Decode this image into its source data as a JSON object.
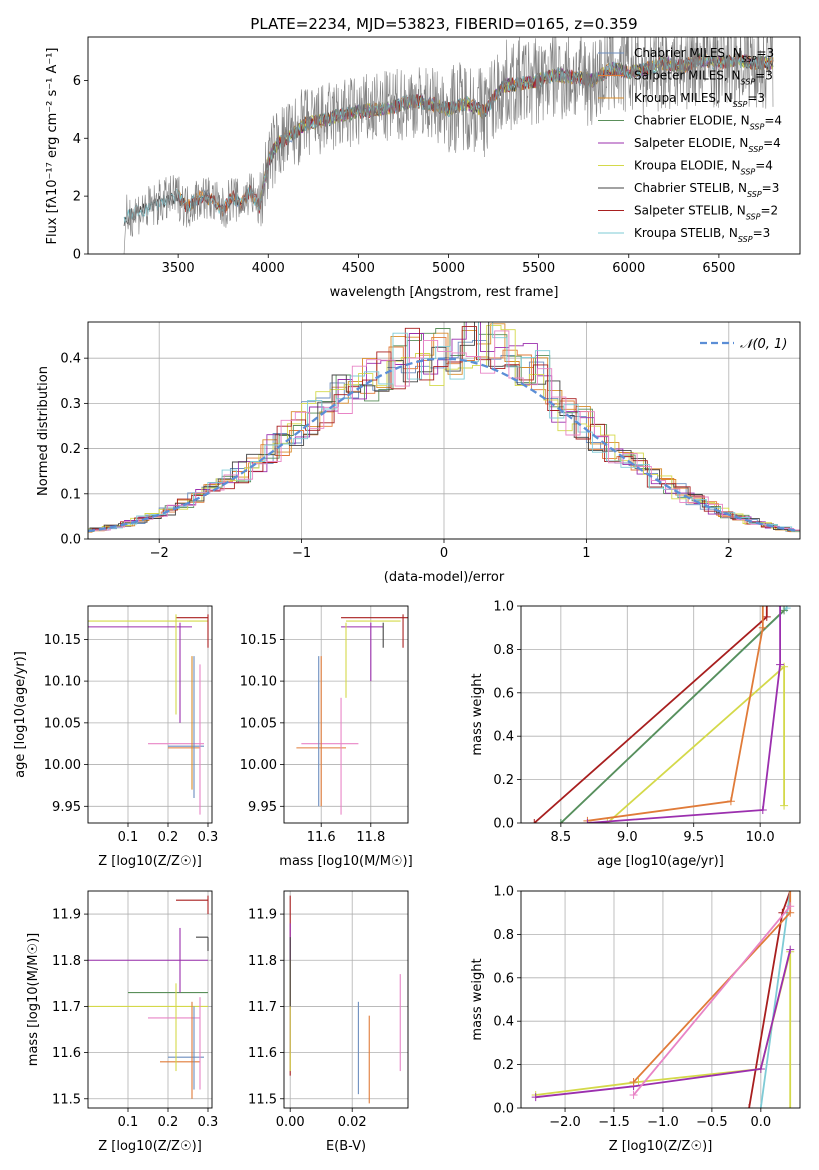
{
  "figure_title": "PLATE=2234, MJD=53823, FIBERID=0165, z=0.359",
  "colors": {
    "model_colors": [
      "#6c8ebf",
      "#e07b39",
      "#d98c2a",
      "#5a8f5a",
      "#9b2fae",
      "#d4d94a",
      "#444444",
      "#a81f1f",
      "#7ecbd6"
    ],
    "mass_ebv_colors": [
      "#6c8ebf",
      "#e07b39",
      "#e884c6"
    ],
    "normal_curve": "#5b8ed6",
    "spectrum_data": "#808080"
  },
  "chart_data": [
    {
      "id": "spectrum",
      "type": "line",
      "title": "PLATE=2234, MJD=53823, FIBERID=0165, z=0.359",
      "xlabel": "wavelength [Angstrom, rest frame]",
      "ylabel": "Flux [fλ10⁻¹⁷ erg cm⁻² s⁻¹ A⁻¹]",
      "xlim": [
        3000,
        6950
      ],
      "ylim": [
        0,
        7.5
      ],
      "xticks": [
        3500,
        4000,
        4500,
        5000,
        5500,
        6000,
        6500
      ],
      "yticks": [
        0,
        2,
        4,
        6
      ],
      "grid": false,
      "legend_position": "right",
      "legend": [
        "Chabrier MILES, N_SSP=3",
        "Salpeter MILES, N_SSP=3",
        "Kroupa MILES, N_SSP=3",
        "Chabrier ELODIE, N_SSP=4",
        "Salpeter ELODIE, N_SSP=4",
        "Kroupa ELODIE, N_SSP=4",
        "Chabrier STELIB, N_SSP=3",
        "Salpeter STELIB, N_SSP=2",
        "Kroupa STELIB, N_SSP=3"
      ],
      "continuum": {
        "x": [
          3200,
          3250,
          3300,
          3350,
          3400,
          3450,
          3500,
          3550,
          3600,
          3650,
          3700,
          3750,
          3800,
          3850,
          3900,
          3950,
          4000,
          4050,
          4100,
          4150,
          4200,
          4300,
          4400,
          4500,
          4600,
          4700,
          4800,
          4900,
          5000,
          5100,
          5200,
          5300,
          5400,
          5500,
          5600,
          5700,
          5800,
          5900,
          6000,
          6100,
          6200,
          6300,
          6400,
          6500,
          6600,
          6700,
          6800
        ],
        "y": [
          1.2,
          1.4,
          1.5,
          1.6,
          1.8,
          1.9,
          2.0,
          1.6,
          1.9,
          2.0,
          1.8,
          1.5,
          2.0,
          1.7,
          2.2,
          1.6,
          3.2,
          3.8,
          4.0,
          4.2,
          4.5,
          4.6,
          4.8,
          4.9,
          5.0,
          5.1,
          5.3,
          5.2,
          5.0,
          5.2,
          4.9,
          5.8,
          5.9,
          6.0,
          6.2,
          6.1,
          6.0,
          6.4,
          6.3,
          6.4,
          6.6,
          6.5,
          6.7,
          6.6,
          6.7,
          6.6,
          6.6
        ]
      }
    },
    {
      "id": "residuals",
      "type": "line",
      "xlabel": "(data-model)/error",
      "ylabel": "Normed distribution",
      "xlim": [
        -2.5,
        2.5
      ],
      "ylim": [
        0,
        0.48
      ],
      "xticks": [
        -2,
        -1,
        0,
        1,
        2
      ],
      "yticks": [
        0.0,
        0.1,
        0.2,
        0.3,
        0.4
      ],
      "grid": true,
      "legend_position": "top-right",
      "legend": [
        "𝒩(0, 1)"
      ],
      "normal_curve": {
        "mean": 0,
        "sigma": 1
      }
    },
    {
      "id": "age_vs_Z",
      "type": "scatter",
      "xlabel": "Z [log10(Z/Z☉)]",
      "ylabel": "age  [log10(age/yr)]",
      "xlim": [
        0.0,
        0.31
      ],
      "ylim": [
        9.93,
        10.19
      ],
      "xticks": [
        0.1,
        0.2,
        0.3
      ],
      "yticks": [
        9.95,
        10.0,
        10.05,
        10.1,
        10.15
      ],
      "grid": true
    },
    {
      "id": "age_vs_mass",
      "type": "scatter",
      "xlabel": "mass [log10(M/M☉)]",
      "ylabel": "",
      "xlim": [
        11.45,
        11.95
      ],
      "ylim": [
        9.93,
        10.19
      ],
      "xticks": [
        11.6,
        11.8
      ],
      "yticks": [
        9.95,
        10.0,
        10.05,
        10.1,
        10.15
      ],
      "grid": true
    },
    {
      "id": "cum_weight_age",
      "type": "line",
      "xlabel": "age  [log10(age/yr)]",
      "ylabel": "mass weight",
      "xlim": [
        8.2,
        10.3
      ],
      "ylim": [
        0.0,
        1.0
      ],
      "xticks": [
        8.5,
        9.0,
        9.5,
        10.0
      ],
      "yticks": [
        0.0,
        0.2,
        0.4,
        0.6,
        0.8,
        1.0
      ],
      "grid": true,
      "series": [
        {
          "x": [
            8.3,
            10.05,
            10.05
          ],
          "y": [
            0.0,
            0.95,
            1.0
          ],
          "color": "#a81f1f"
        },
        {
          "x": [
            8.5,
            10.2,
            10.2
          ],
          "y": [
            0.0,
            0.99,
            1.0
          ],
          "color": "#7ecbd6"
        },
        {
          "x": [
            8.5,
            10.18
          ],
          "y": [
            0.0,
            0.98
          ],
          "color": "#5a8f5a"
        },
        {
          "x": [
            8.85,
            10.18,
            10.18
          ],
          "y": [
            0.0,
            0.72,
            0.08
          ],
          "color": "#d4d94a"
        },
        {
          "x": [
            8.7,
            9.78,
            10.02,
            10.02
          ],
          "y": [
            0.01,
            0.1,
            0.9,
            1.0
          ],
          "color": "#e07b39"
        },
        {
          "x": [
            8.7,
            10.02,
            10.15,
            10.15
          ],
          "y": [
            0.0,
            0.06,
            0.73,
            1.0
          ],
          "color": "#9b2fae"
        }
      ]
    },
    {
      "id": "mass_vs_Z",
      "type": "scatter",
      "xlabel": "Z [log10(Z/Z☉)]",
      "ylabel": "mass [log10(M/M☉)]",
      "xlim": [
        0.0,
        0.31
      ],
      "ylim": [
        11.48,
        11.95
      ],
      "xticks": [
        0.1,
        0.2,
        0.3
      ],
      "yticks": [
        11.5,
        11.6,
        11.7,
        11.8,
        11.9
      ],
      "grid": true
    },
    {
      "id": "mass_vs_ebv",
      "type": "scatter",
      "xlabel": "E(B-V)",
      "ylabel": "",
      "xlim": [
        -0.002,
        0.038
      ],
      "ylim": [
        11.48,
        11.95
      ],
      "xticks": [
        0.0,
        0.02
      ],
      "yticks": [
        11.5,
        11.6,
        11.7,
        11.8,
        11.9
      ],
      "grid": true
    },
    {
      "id": "cum_weight_Z",
      "type": "line",
      "xlabel": "Z [log10(Z/Z☉)]",
      "ylabel": "mass weight",
      "xlim": [
        -2.45,
        0.4
      ],
      "ylim": [
        0.0,
        1.0
      ],
      "xticks": [
        -2.0,
        -1.5,
        -1.0,
        -0.5,
        0.0
      ],
      "yticks": [
        0.0,
        0.2,
        0.4,
        0.6,
        0.8,
        1.0
      ],
      "grid": true,
      "series": [
        {
          "x": [
            -0.12,
            0.22,
            0.3
          ],
          "y": [
            0.0,
            0.9,
            1.0
          ],
          "color": "#a81f1f"
        },
        {
          "x": [
            0.0,
            0.3
          ],
          "y": [
            0.0,
            1.0
          ],
          "color": "#7ecbd6"
        },
        {
          "x": [
            -2.3,
            -1.25,
            0.0,
            0.3,
            0.3
          ],
          "y": [
            0.06,
            0.12,
            0.18,
            0.72,
            0.0
          ],
          "color": "#d4d94a"
        },
        {
          "x": [
            -2.3,
            -1.3,
            0.0,
            0.3
          ],
          "y": [
            0.05,
            0.1,
            0.18,
            0.73
          ],
          "color": "#9b2fae"
        },
        {
          "x": [
            -1.3,
            0.3,
            0.3
          ],
          "y": [
            0.12,
            0.9,
            1.0
          ],
          "color": "#e07b39"
        },
        {
          "x": [
            -1.3,
            0.3
          ],
          "y": [
            0.06,
            0.93
          ],
          "color": "#e884c6"
        }
      ]
    }
  ]
}
